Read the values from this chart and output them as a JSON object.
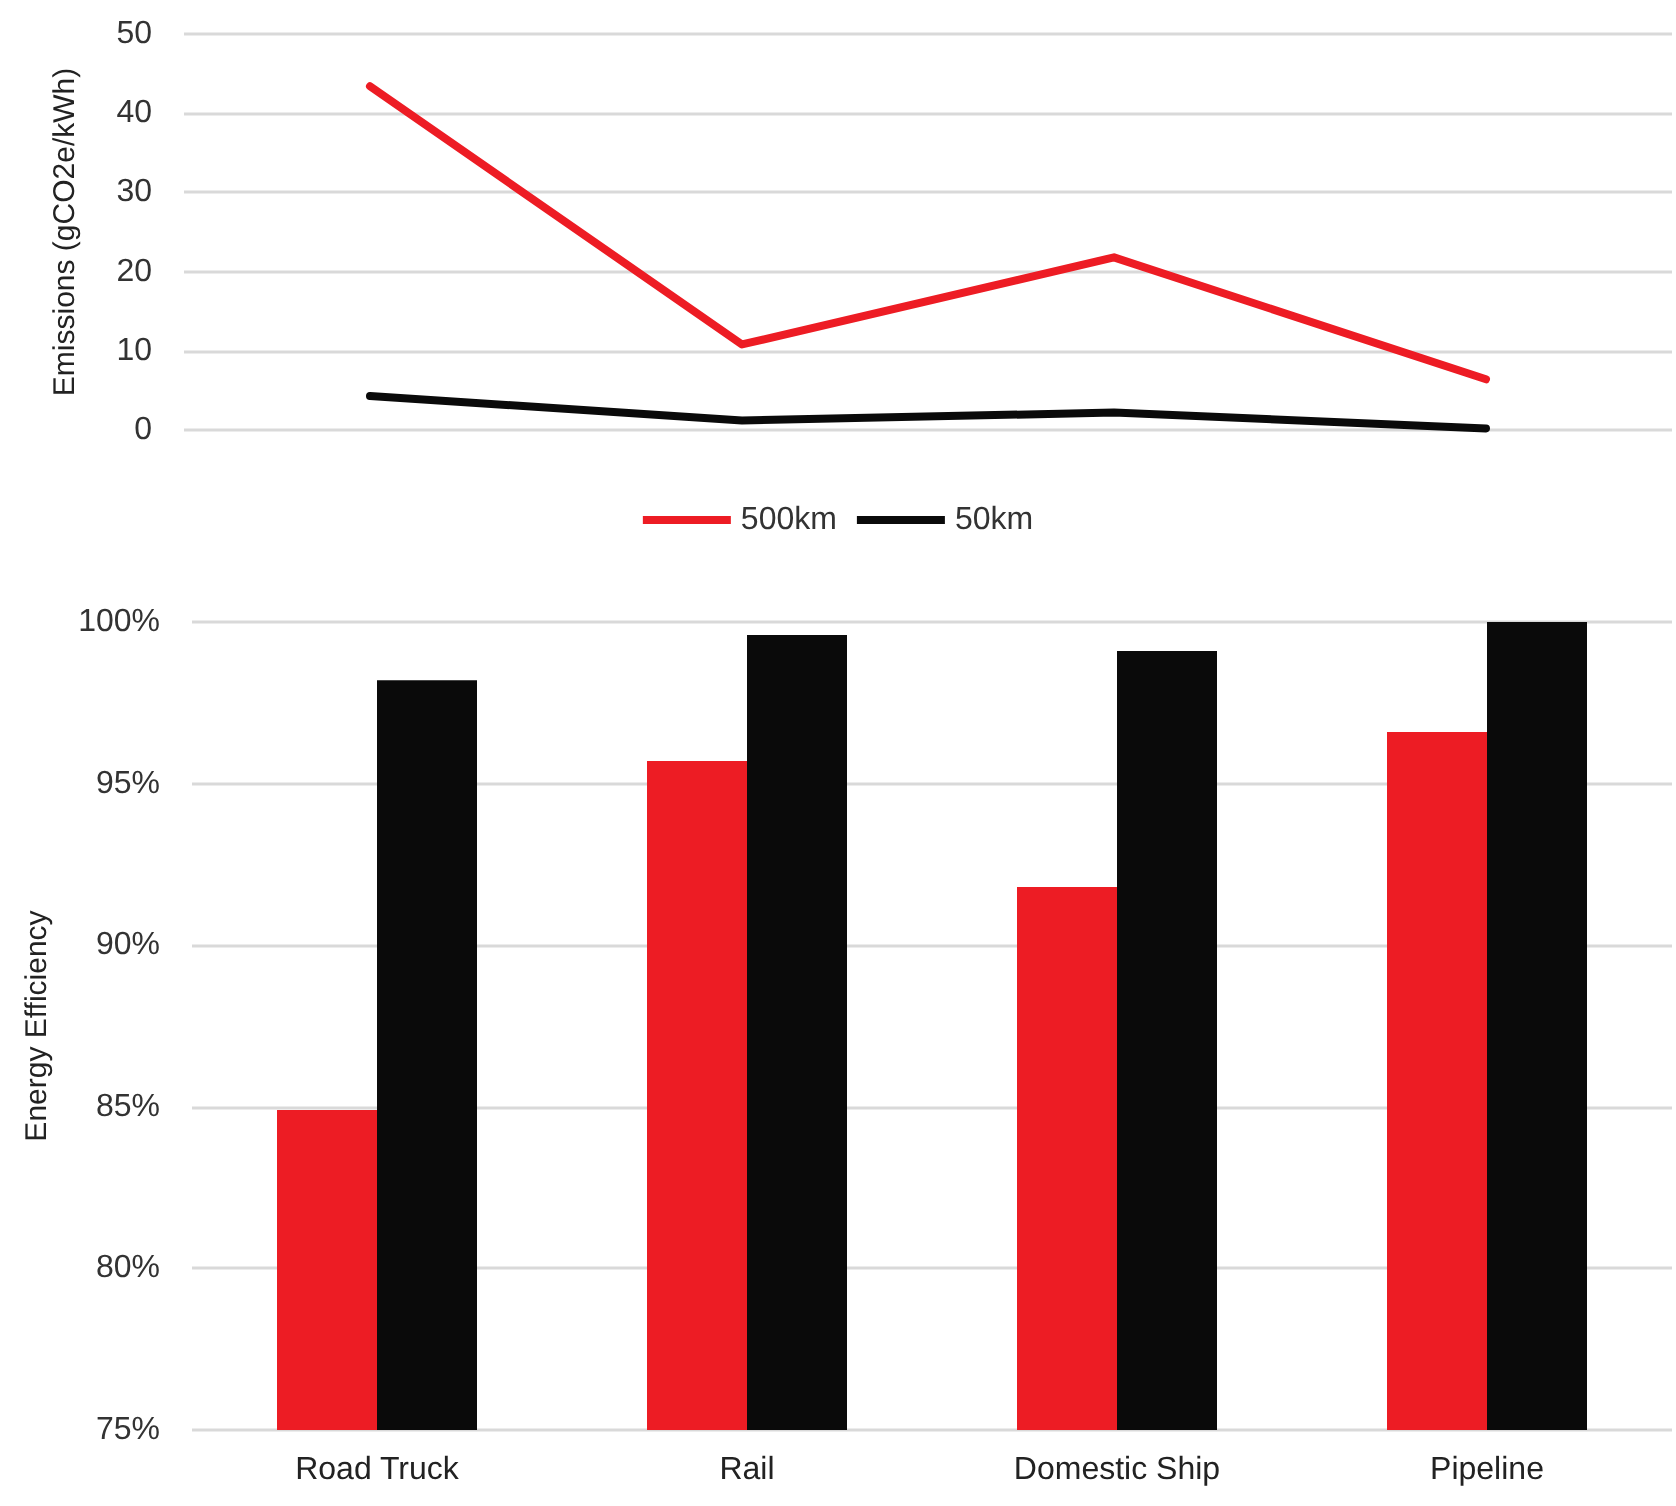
{
  "chart_data": [
    {
      "type": "line",
      "ylabel": "Emissions (gCO2e/kWh)",
      "categories": [
        null,
        null,
        null,
        null
      ],
      "ylim": [
        0,
        50
      ],
      "yticks": [
        0,
        10,
        20,
        30,
        40,
        50
      ],
      "grid": "y",
      "legend": "bottom",
      "marker": "none",
      "line_style": "solid",
      "series": [
        {
          "name": "500km",
          "color": "#ed1c24",
          "values": [
            43.4,
            10.8,
            21.8,
            6.4
          ]
        },
        {
          "name": "50km",
          "color": "#0a0a0a",
          "values": [
            4.3,
            1.2,
            2.2,
            0.2
          ]
        }
      ]
    },
    {
      "type": "bar",
      "ylabel": "Energy Efficiency",
      "categories": [
        "Road Truck",
        "Rail",
        "Domestic Ship",
        "Pipeline"
      ],
      "ylim": [
        75,
        100
      ],
      "yticks": [
        {
          "value": 75,
          "label": "75%"
        },
        {
          "value": 80,
          "label": "80%"
        },
        {
          "value": 85,
          "label": "85%"
        },
        {
          "value": 90,
          "label": "90%"
        },
        {
          "value": 95,
          "label": "95%"
        },
        {
          "value": 100,
          "label": "100%"
        }
      ],
      "grid": "y",
      "legend": false,
      "series": [
        {
          "color": "#ed1c24",
          "values": [
            84.9,
            95.7,
            91.8,
            96.6
          ]
        },
        {
          "color": "#0a0a0a",
          "values": [
            98.2,
            99.6,
            99.1,
            100
          ]
        }
      ]
    }
  ]
}
